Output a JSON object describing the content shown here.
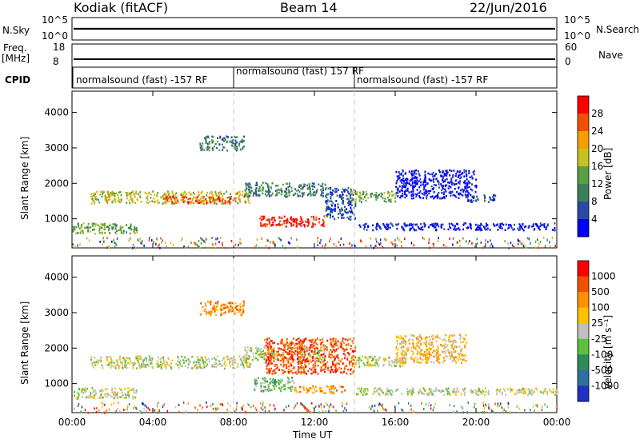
{
  "header": {
    "site": "Kodiak (fitACF)",
    "beam": "Beam 14",
    "date": "22/Jun/2016"
  },
  "strips": {
    "nsky_label": "N.Sky",
    "nsky_ticks": [
      "10^5",
      "10^0"
    ],
    "nsearch_label": "N.Search",
    "nsearch_ticks": [
      "10^5",
      "10^0"
    ],
    "freq_label": "Freq.",
    "freq_unit": "[MHz]",
    "freq_ticks": [
      "18",
      "8"
    ],
    "nave_label": "Nave",
    "nave_ticks": [
      "60",
      "0"
    ],
    "cpid_label": "CPID"
  },
  "cpid_segments": [
    {
      "label": "normalsound (fast) -157 RF",
      "start_h": 0
    },
    {
      "label": "normalsound (fast) 157 RF",
      "start_h": 8
    },
    {
      "label": "normalsound (fast) -157 RF",
      "start_h": 14
    }
  ],
  "colors": {
    "power": [
      "#0000ff",
      "#2a4aa8",
      "#3a7f5a",
      "#5aa040",
      "#c8c020",
      "#f5a000",
      "#f05000",
      "#ff0000"
    ],
    "velocity": [
      "#2030c0",
      "#3070a0",
      "#2e8b57",
      "#5cc03c",
      "#bfbfbf",
      "#ffc000",
      "#ff9000",
      "#f05000",
      "#ff0000"
    ],
    "ground_scatter": "#bfbfbf"
  },
  "chart_data": [
    {
      "type": "heatmap",
      "name": "power",
      "xlabel": "Time UT",
      "ylabel": "Slant Range [km]",
      "colorbar_label": "Power [dB]",
      "colorbar_ticks": [
        "28",
        "24",
        "20",
        "16",
        "12",
        "8",
        "4"
      ],
      "xlim": [
        0,
        24
      ],
      "ylim": [
        180,
        4600
      ],
      "yticks": [
        "1000",
        "2000",
        "3000",
        "4000"
      ],
      "xticks": [
        "00:00",
        "04:00",
        "08:00",
        "12:00",
        "16:00",
        "20:00",
        "00:00"
      ],
      "regions": [
        {
          "t0": 0.0,
          "t1": 3.2,
          "r0": 600,
          "r1": 900,
          "level": 3
        },
        {
          "t0": 0.9,
          "t1": 8.8,
          "r0": 1450,
          "r1": 1800,
          "level": 4
        },
        {
          "t0": 4.5,
          "t1": 8.0,
          "r0": 1450,
          "r1": 1650,
          "level": 6
        },
        {
          "t0": 6.3,
          "t1": 8.5,
          "r0": 2950,
          "r1": 3350,
          "level": 2
        },
        {
          "t0": 8.5,
          "t1": 12.5,
          "r0": 1650,
          "r1": 2050,
          "level": 2
        },
        {
          "t0": 9.2,
          "t1": 12.5,
          "r0": 800,
          "r1": 1100,
          "level": 7
        },
        {
          "t0": 12.5,
          "t1": 14.0,
          "r0": 1000,
          "r1": 1900,
          "level": 1
        },
        {
          "t0": 13.8,
          "t1": 16.0,
          "r0": 1500,
          "r1": 1800,
          "level": 3
        },
        {
          "t0": 16.0,
          "t1": 20.0,
          "r0": 1600,
          "r1": 2400,
          "level": 0
        },
        {
          "t0": 19.5,
          "t1": 21.0,
          "r0": 1500,
          "r1": 1700,
          "level": 1
        },
        {
          "t0": 14.0,
          "t1": 24.0,
          "r0": 700,
          "r1": 900,
          "level": 0
        }
      ]
    },
    {
      "type": "heatmap",
      "name": "velocity",
      "xlabel": "Time UT",
      "ylabel": "Slant Range [km]",
      "colorbar_label": "Velocity [m s⁻¹]",
      "colorbar_ticks": [
        "1000",
        "500",
        "100",
        "25",
        "-25",
        "-100",
        "-500",
        "-1000"
      ],
      "xlim": [
        0,
        24
      ],
      "ylim": [
        180,
        4600
      ],
      "yticks": [
        "1000",
        "2000",
        "3000",
        "4000"
      ],
      "xticks": [
        "00:00",
        "04:00",
        "08:00",
        "12:00",
        "16:00",
        "20:00",
        "00:00"
      ],
      "regions": [
        {
          "t0": 0.0,
          "t1": 3.2,
          "r0": 600,
          "r1": 900,
          "level": 4
        },
        {
          "t0": 0.9,
          "t1": 8.8,
          "r0": 1450,
          "r1": 1800,
          "level": 4
        },
        {
          "t0": 6.3,
          "t1": 8.5,
          "r0": 2950,
          "r1": 3350,
          "level": 6
        },
        {
          "t0": 8.5,
          "t1": 12.5,
          "r0": 1650,
          "r1": 2050,
          "level": 4
        },
        {
          "t0": 9.0,
          "t1": 11.0,
          "r0": 800,
          "r1": 1200,
          "level": 3
        },
        {
          "t0": 11.0,
          "t1": 13.5,
          "r0": 750,
          "r1": 950,
          "level": 6
        },
        {
          "t0": 9.5,
          "t1": 14.0,
          "r0": 1300,
          "r1": 2300,
          "level": 7
        },
        {
          "t0": 14.0,
          "t1": 16.5,
          "r0": 1500,
          "r1": 1800,
          "level": 4
        },
        {
          "t0": 16.0,
          "t1": 19.5,
          "r0": 1600,
          "r1": 2400,
          "level": 5
        },
        {
          "t0": 14.0,
          "t1": 24.0,
          "r0": 700,
          "r1": 900,
          "level": 4
        }
      ]
    }
  ]
}
